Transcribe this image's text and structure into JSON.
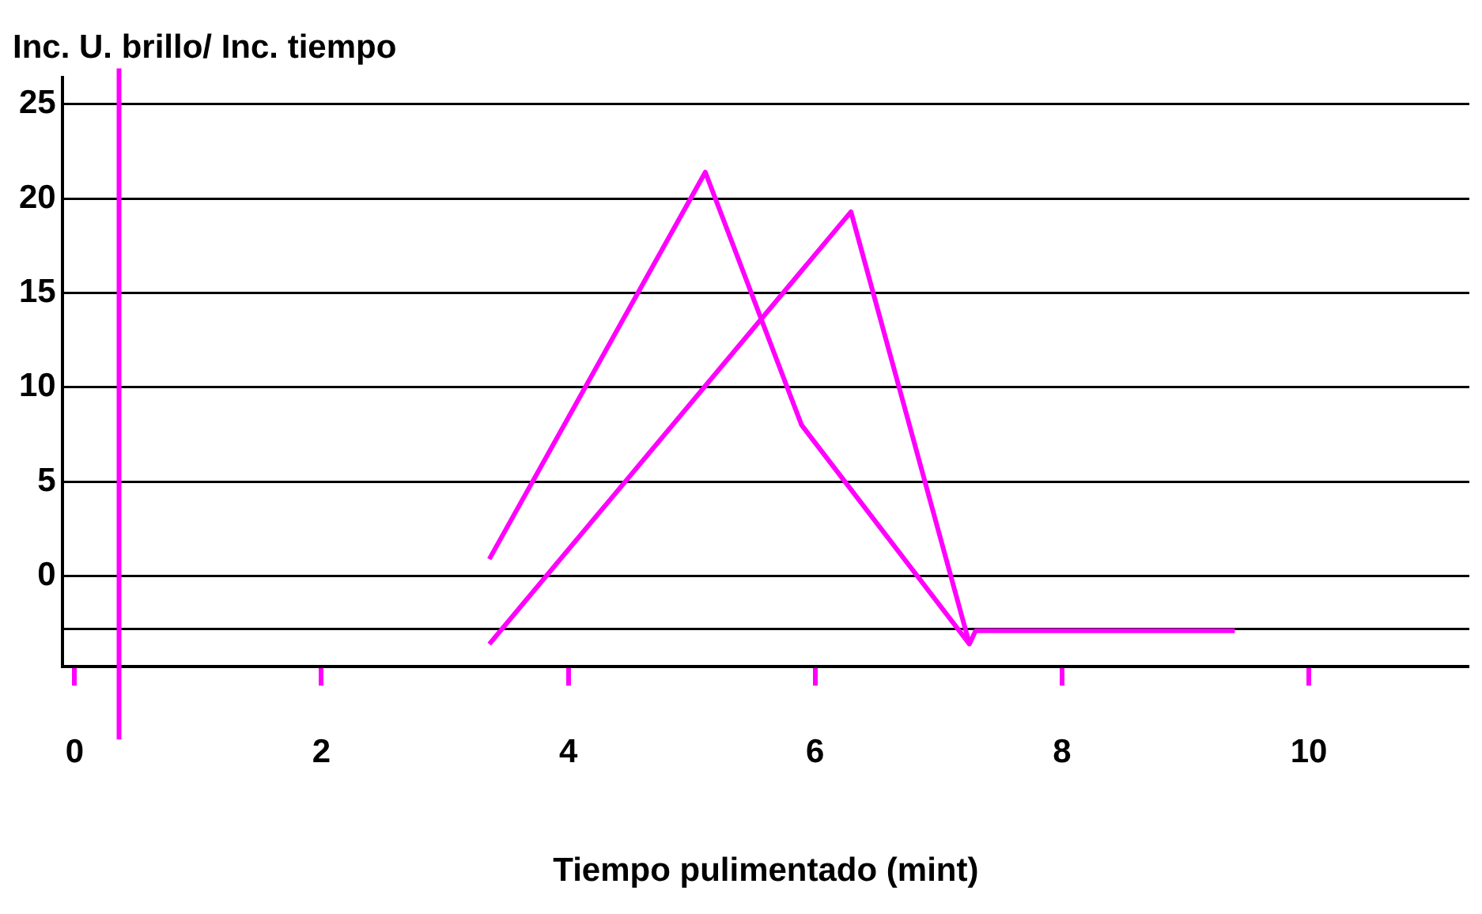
{
  "chart_data": {
    "type": "line",
    "title": "Inc. U. brillo/ Inc. tiempo",
    "xlabel": "Tiempo pulimentado (mint)",
    "series": [
      {
        "color": "#ff00ff",
        "x": [
          3.36,
          5.11,
          5.89,
          7.25
        ],
        "values": [
          0.9,
          21.4,
          8,
          -3.6
        ]
      },
      {
        "color": "#ff00ff",
        "x": [
          3.36,
          6.29,
          7.25,
          7.3,
          9.4
        ],
        "values": [
          -3.6,
          19.3,
          -3.6,
          -2.9,
          -2.9
        ]
      }
    ],
    "xlim": [
      -0.1,
      11.3
    ],
    "xticks": [
      0,
      2,
      4,
      6,
      8,
      10
    ],
    "ylim": [
      -4.8,
      26.4
    ],
    "yticks": [
      0,
      5,
      10,
      15,
      20,
      25,
      {
        "value": -2.8,
        "label": null
      }
    ],
    "ref_lines": [
      {
        "axis": "x",
        "value": 0.36,
        "color": "#ff00ff"
      }
    ],
    "grid": "y",
    "legend": false,
    "marker": "none",
    "line_style": "solid"
  }
}
